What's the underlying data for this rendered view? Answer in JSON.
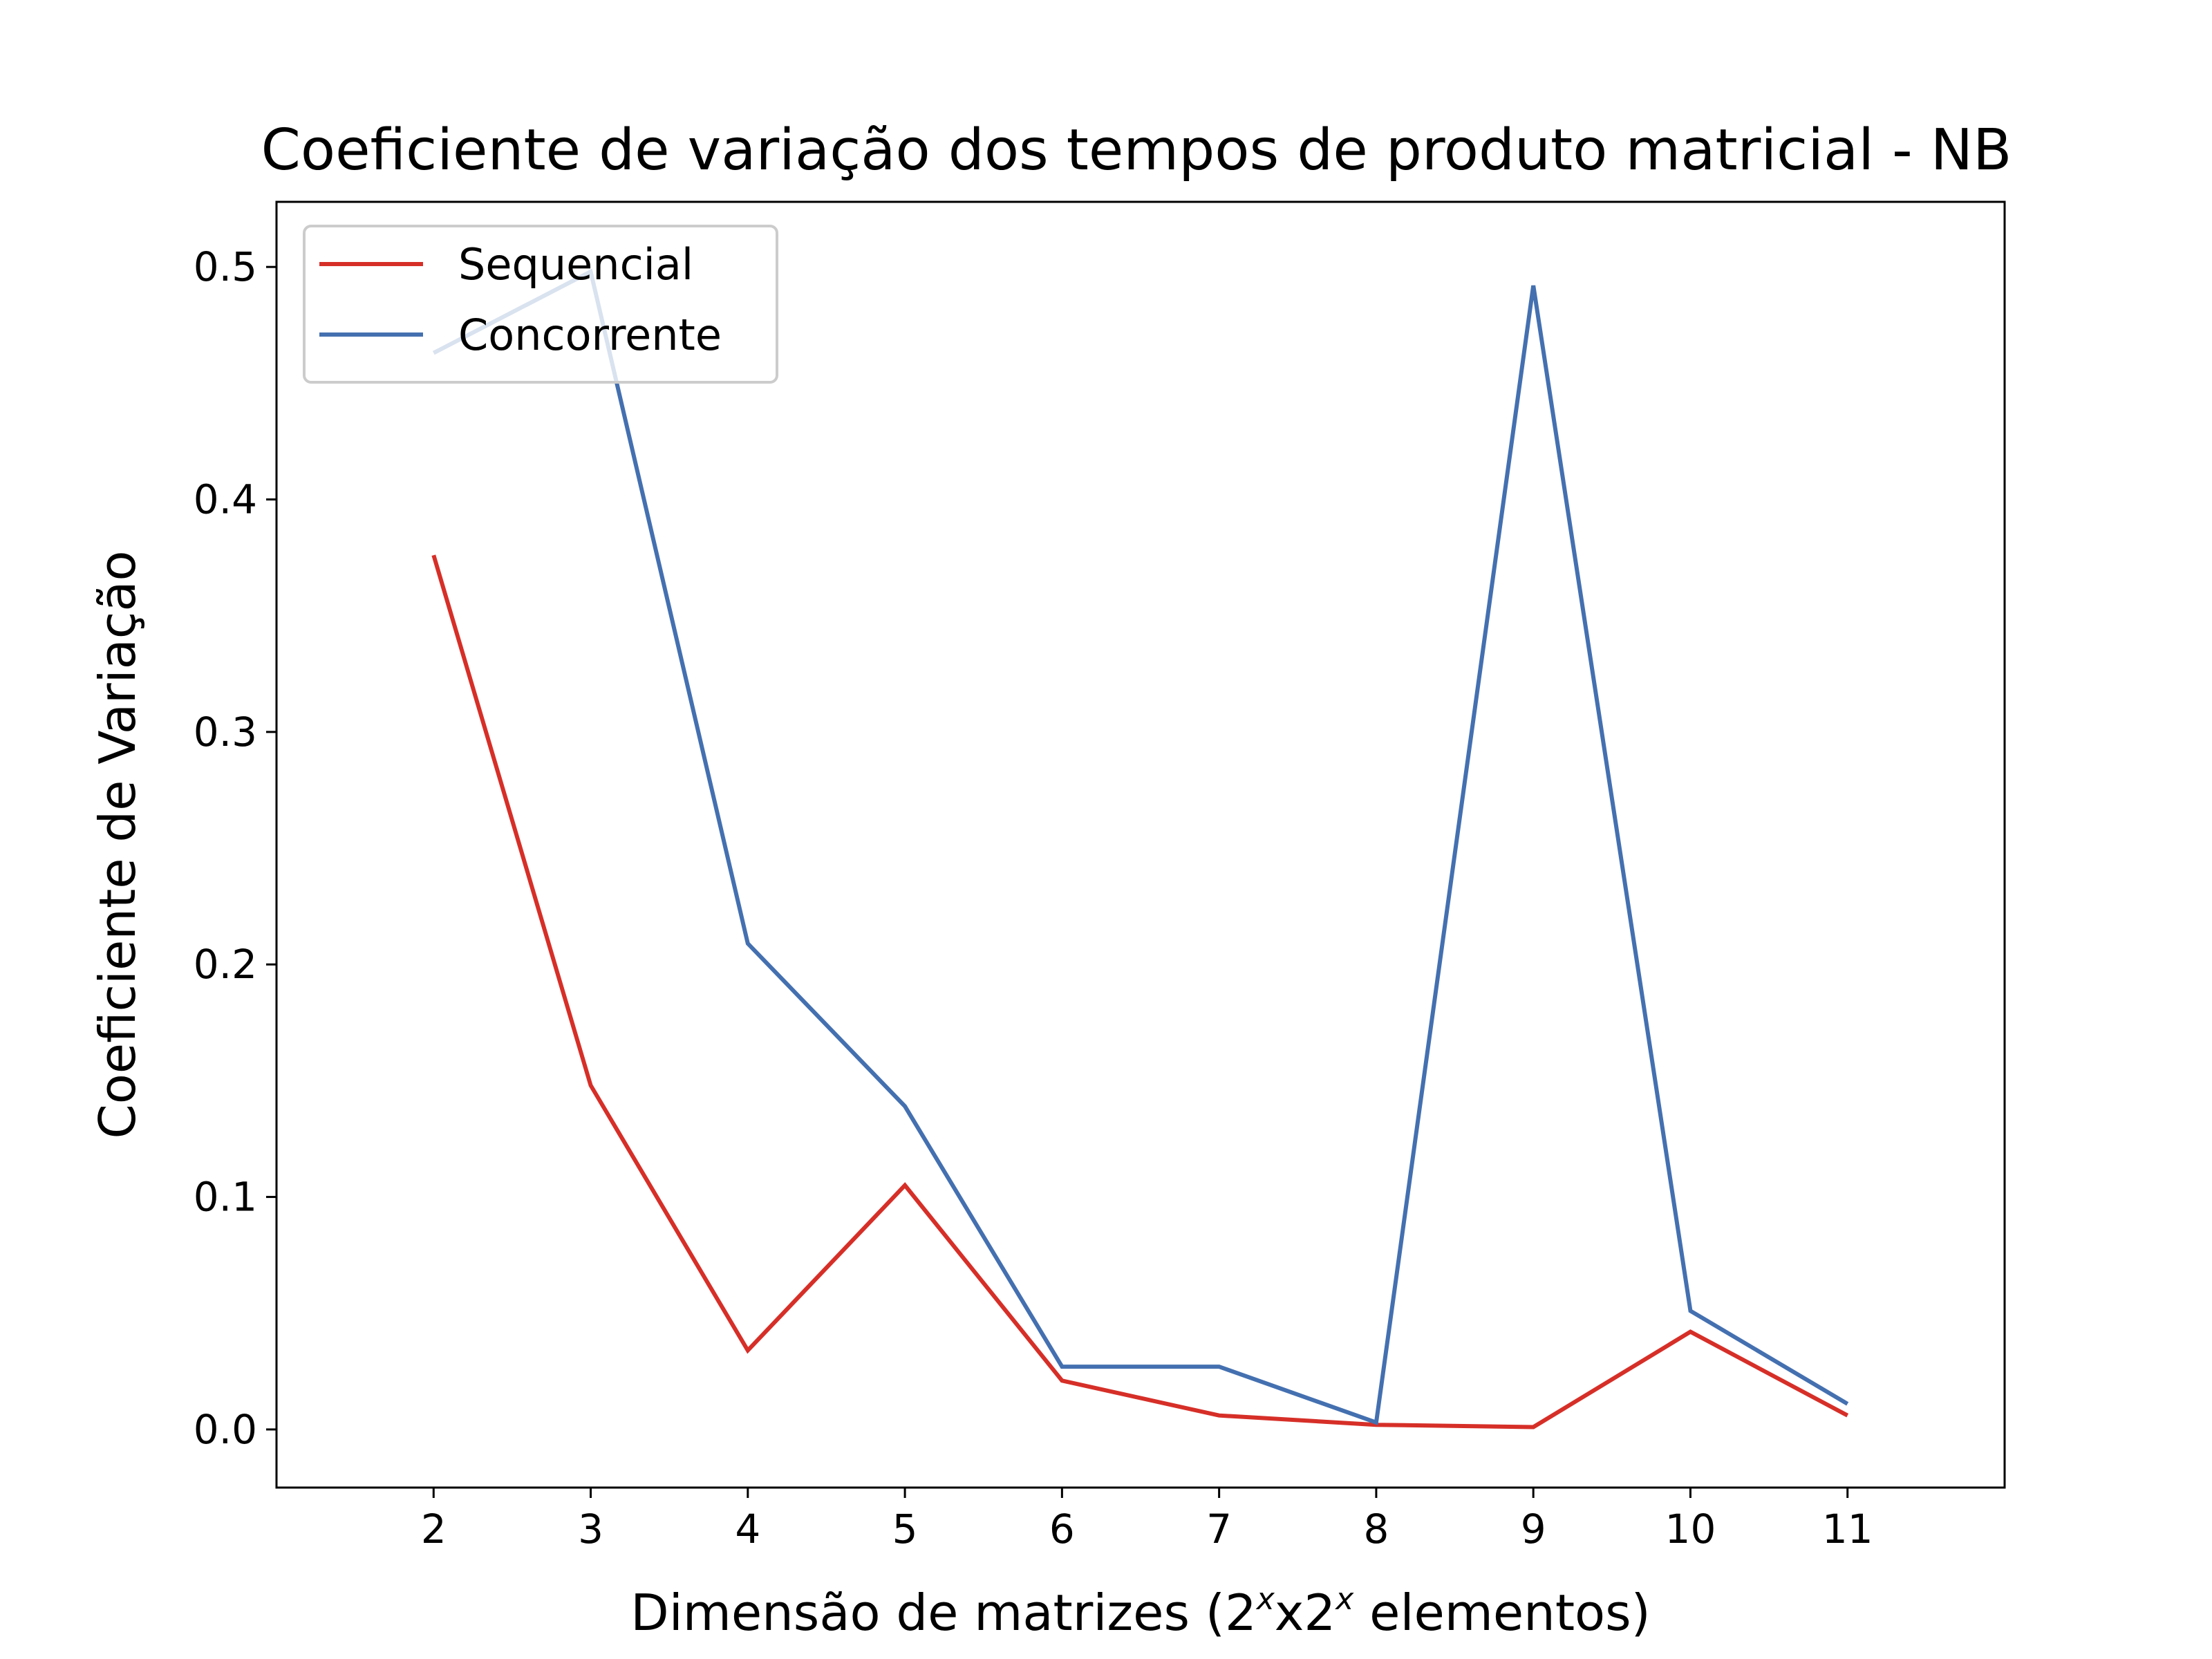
{
  "chart_data": {
    "type": "line",
    "title": "Coeficiente de variação dos tempos de produto matricial - NB",
    "xlabel": {
      "prefix": "Dimensão de matrizes (2",
      "sup1": "x",
      "middle": "x2",
      "sup2": "x",
      "suffix": " elementos)"
    },
    "ylabel": "Coeficiente de Variação",
    "x": [
      2,
      3,
      4,
      5,
      6,
      7,
      8,
      9,
      10,
      11
    ],
    "xticks": [
      "2",
      "3",
      "4",
      "5",
      "6",
      "7",
      "8",
      "9",
      "10",
      "11"
    ],
    "yticks": [
      "0.0",
      "0.1",
      "0.2",
      "0.3",
      "0.4",
      "0.5"
    ],
    "ytick_values": [
      0.0,
      0.1,
      0.2,
      0.3,
      0.4,
      0.5
    ],
    "xlim": [
      1,
      12
    ],
    "ylim": [
      -0.025,
      0.528
    ],
    "legend_position": "upper-left",
    "series": [
      {
        "name": "Sequencial",
        "color": "#d62f28",
        "values": [
          0.376,
          0.148,
          0.034,
          0.105,
          0.021,
          0.006,
          0.002,
          0.001,
          0.042,
          0.006
        ]
      },
      {
        "name": "Concorrente",
        "color": "#4470b0",
        "values": [
          0.463,
          0.498,
          0.209,
          0.139,
          0.027,
          0.027,
          0.003,
          0.492,
          0.051,
          0.011
        ]
      }
    ]
  }
}
